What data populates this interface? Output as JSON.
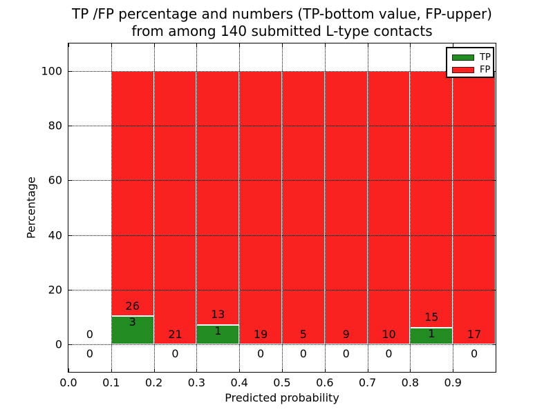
{
  "figure": {
    "title_line1": "TP /FP percentage and numbers (TP-bottom value, FP-upper)",
    "title_line2": "from among 140 submitted L-type contacts"
  },
  "chart_data": {
    "type": "bar",
    "stacked": true,
    "title": "TP /FP percentage and numbers (TP-bottom value, FP-upper) from among 140 submitted L-type contacts",
    "xlabel": "Predicted probability",
    "ylabel": "Percentage",
    "xlim": [
      0.0,
      1.0
    ],
    "ylim": [
      -10,
      110
    ],
    "xtick_labels": [
      "0.0",
      "0.1",
      "0.2",
      "0.3",
      "0.4",
      "0.5",
      "0.6",
      "0.7",
      "0.8",
      "0.9"
    ],
    "yticks": [
      0,
      20,
      40,
      60,
      80,
      100
    ],
    "grid": true,
    "grid_style": "dotted",
    "grid_above_bars": true,
    "legend_position": "upper right",
    "total_contacts": 140,
    "bin_edges": [
      0.0,
      0.1,
      0.2,
      0.3,
      0.4,
      0.5,
      0.6,
      0.7,
      0.8,
      0.9,
      1.0
    ],
    "series": [
      {
        "name": "TP",
        "color": "#228b22",
        "counts": [
          0,
          3,
          0,
          1,
          0,
          0,
          0,
          0,
          1,
          0
        ],
        "percent_of_bin": [
          0,
          10.34,
          0,
          7.14,
          0,
          0,
          0,
          0,
          6.25,
          0
        ]
      },
      {
        "name": "FP",
        "color": "#fa2121",
        "counts": [
          0,
          26,
          21,
          13,
          19,
          5,
          9,
          10,
          15,
          17
        ],
        "percent_of_bin": [
          0,
          89.66,
          100,
          92.86,
          100,
          100,
          100,
          100,
          93.75,
          100
        ]
      }
    ],
    "colors": {
      "grid": "#000000",
      "bar_edge": "#ffffff",
      "text": "#000000",
      "background": "#ffffff"
    }
  }
}
